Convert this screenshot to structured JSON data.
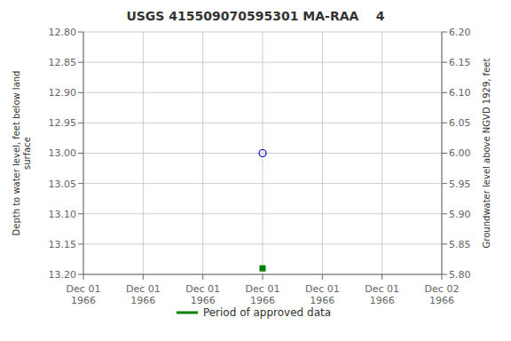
{
  "chart_data": {
    "type": "scatter",
    "title": "USGS 415509070595301 MA-RAA    4",
    "ylabel": "Depth to water level, feet below land\n surface",
    "y2label": "Groundwater level above NGVD 1929, feet",
    "categories": [
      "Dec 01\n1966",
      "Dec 01\n1966",
      "Dec 01\n1966",
      "Dec 01\n1966",
      "Dec 01\n1966",
      "Dec 01\n1966",
      "Dec 02\n1966"
    ],
    "series": [
      {
        "color": "#0000cc",
        "marker": "circle",
        "values": [
          null,
          null,
          null,
          13.0,
          null,
          null,
          null
        ]
      },
      {
        "name": "Period of approved data",
        "color": "#008000",
        "marker": "square",
        "values": [
          null,
          null,
          null,
          13.19,
          null,
          null,
          null
        ]
      }
    ],
    "ylim": [
      13.2,
      12.8
    ],
    "yticks": [
      {
        "value": 12.8,
        "label": "12.80"
      },
      12.85,
      {
        "value": 12.9,
        "label": "12.90"
      },
      12.95,
      {
        "value": 13.0,
        "label": "13.00"
      },
      13.05,
      {
        "value": 13.1,
        "label": "13.10"
      },
      13.15,
      {
        "value": 13.2,
        "label": "13.20"
      }
    ],
    "y2lim": [
      5.8,
      6.2
    ],
    "y2ticks": [
      {
        "value": 6.2,
        "label": "6.20"
      },
      6.15,
      {
        "value": 6.1,
        "label": "6.10"
      },
      6.05,
      {
        "value": 6.0,
        "label": "6.00"
      },
      5.95,
      {
        "value": 5.9,
        "label": "5.90"
      },
      5.85,
      {
        "value": 5.8,
        "label": "5.80"
      }
    ],
    "grid": true,
    "legend": "bottom"
  }
}
